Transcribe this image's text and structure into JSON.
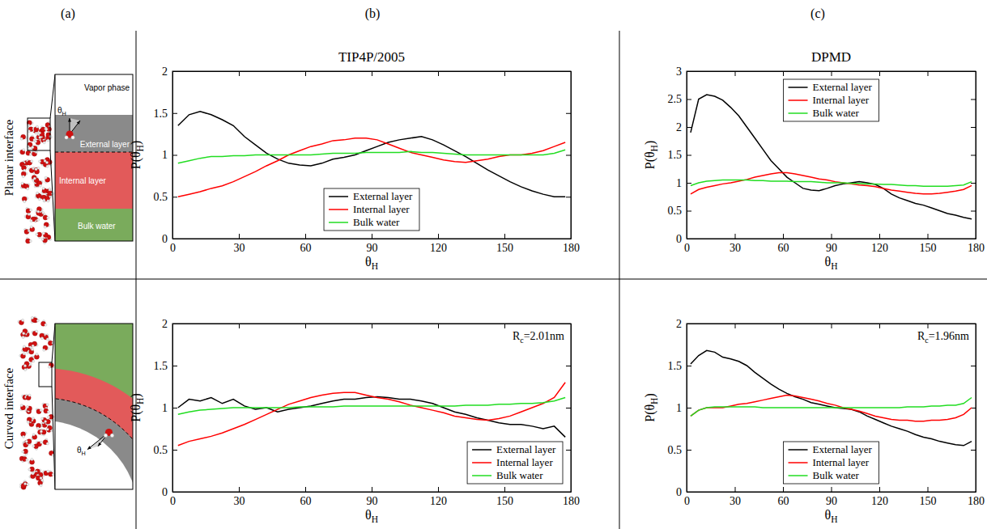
{
  "figure": {
    "column_labels": [
      "(a)",
      "(b)",
      "(c)"
    ],
    "row_labels": [
      "Planar interface",
      "Curved interface"
    ],
    "schematic": {
      "vapor": "Vapor phase",
      "external": "External layer",
      "internal": "Internal layer",
      "bulk": "Bulk water",
      "angle": "θH"
    }
  },
  "chart_data": [
    {
      "type": "line",
      "title": "TIP4P/2005",
      "xlabel": "θH",
      "ylabel": "P(θH)",
      "x": [
        2.5,
        7.5,
        12.5,
        17.5,
        22.5,
        27.5,
        32.5,
        37.5,
        42.5,
        47.5,
        52.5,
        57.5,
        62.5,
        67.5,
        72.5,
        77.5,
        82.5,
        87.5,
        92.5,
        97.5,
        102.5,
        107.5,
        112.5,
        117.5,
        122.5,
        127.5,
        132.5,
        137.5,
        142.5,
        147.5,
        152.5,
        157.5,
        162.5,
        167.5,
        172.5,
        177.5
      ],
      "xlim": [
        0,
        180
      ],
      "xticks": [
        0,
        30,
        60,
        90,
        120,
        150,
        180
      ],
      "ylim": [
        0,
        2
      ],
      "yticks": [
        0,
        0.5,
        1,
        1.5,
        2
      ],
      "legend": "lower center",
      "series": [
        {
          "name": "External layer",
          "color": "#000000",
          "values": [
            1.35,
            1.48,
            1.52,
            1.48,
            1.42,
            1.35,
            1.22,
            1.12,
            1.02,
            0.95,
            0.9,
            0.88,
            0.87,
            0.9,
            0.95,
            0.97,
            1.0,
            1.05,
            1.1,
            1.15,
            1.18,
            1.2,
            1.22,
            1.18,
            1.12,
            1.05,
            0.98,
            0.9,
            0.82,
            0.75,
            0.68,
            0.62,
            0.57,
            0.53,
            0.5,
            0.5
          ]
        },
        {
          "name": "Internal layer",
          "color": "#ff0000",
          "values": [
            0.5,
            0.53,
            0.56,
            0.6,
            0.63,
            0.68,
            0.74,
            0.8,
            0.87,
            0.93,
            1.0,
            1.05,
            1.1,
            1.13,
            1.17,
            1.18,
            1.2,
            1.2,
            1.18,
            1.13,
            1.08,
            1.03,
            1.0,
            0.97,
            0.94,
            0.92,
            0.91,
            0.93,
            0.95,
            0.98,
            1.0,
            1.0,
            1.02,
            1.05,
            1.1,
            1.15
          ]
        },
        {
          "name": "Bulk water",
          "color": "#22dd22",
          "values": [
            0.9,
            0.93,
            0.96,
            0.98,
            0.98,
            0.99,
            0.99,
            1.0,
            1.0,
            1.0,
            1.0,
            1.0,
            1.0,
            1.01,
            1.02,
            1.02,
            1.02,
            1.03,
            1.03,
            1.03,
            1.03,
            1.04,
            1.03,
            1.03,
            1.02,
            1.01,
            1.0,
            1.0,
            1.0,
            1.0,
            1.0,
            1.0,
            1.0,
            1.0,
            1.02,
            1.06
          ]
        }
      ]
    },
    {
      "type": "line",
      "title": "DPMD",
      "xlabel": "θH",
      "ylabel": "P(θH)",
      "x": [
        2.5,
        7.5,
        12.5,
        17.5,
        22.5,
        27.5,
        32.5,
        37.5,
        42.5,
        47.5,
        52.5,
        57.5,
        62.5,
        67.5,
        72.5,
        77.5,
        82.5,
        87.5,
        92.5,
        97.5,
        102.5,
        107.5,
        112.5,
        117.5,
        122.5,
        127.5,
        132.5,
        137.5,
        142.5,
        147.5,
        152.5,
        157.5,
        162.5,
        167.5,
        172.5,
        177.5
      ],
      "xlim": [
        0,
        180
      ],
      "xticks": [
        0,
        30,
        60,
        90,
        120,
        150,
        180
      ],
      "ylim": [
        0,
        3
      ],
      "yticks": [
        0,
        0.5,
        1,
        1.5,
        2,
        2.5,
        3
      ],
      "legend": "upper center",
      "series": [
        {
          "name": "External layer",
          "color": "#000000",
          "values": [
            1.9,
            2.5,
            2.58,
            2.55,
            2.48,
            2.35,
            2.2,
            2.0,
            1.8,
            1.6,
            1.4,
            1.25,
            1.1,
            1.0,
            0.9,
            0.87,
            0.86,
            0.9,
            0.95,
            0.98,
            1.0,
            1.02,
            1.0,
            0.97,
            0.9,
            0.8,
            0.73,
            0.68,
            0.63,
            0.6,
            0.55,
            0.5,
            0.45,
            0.42,
            0.38,
            0.35
          ]
        },
        {
          "name": "Internal layer",
          "color": "#ff0000",
          "values": [
            0.8,
            0.88,
            0.92,
            0.95,
            0.98,
            1.0,
            1.03,
            1.06,
            1.1,
            1.13,
            1.16,
            1.18,
            1.18,
            1.16,
            1.13,
            1.1,
            1.07,
            1.05,
            1.02,
            1.0,
            0.98,
            0.96,
            0.95,
            0.93,
            0.9,
            0.87,
            0.85,
            0.83,
            0.81,
            0.8,
            0.8,
            0.81,
            0.83,
            0.85,
            0.88,
            0.95
          ]
        },
        {
          "name": "Bulk water",
          "color": "#22dd22",
          "values": [
            0.95,
            1.0,
            1.03,
            1.04,
            1.05,
            1.05,
            1.05,
            1.05,
            1.04,
            1.04,
            1.03,
            1.03,
            1.03,
            1.02,
            1.02,
            1.02,
            1.01,
            1.0,
            1.0,
            1.0,
            0.99,
            0.99,
            0.98,
            0.98,
            0.97,
            0.97,
            0.96,
            0.95,
            0.95,
            0.94,
            0.94,
            0.94,
            0.94,
            0.95,
            0.96,
            1.02
          ]
        }
      ]
    },
    {
      "type": "line",
      "xlabel": "θH",
      "ylabel": "P(θH)",
      "annotation": "Rc=2.01nm",
      "x": [
        2.5,
        7.5,
        12.5,
        17.5,
        22.5,
        27.5,
        32.5,
        37.5,
        42.5,
        47.5,
        52.5,
        57.5,
        62.5,
        67.5,
        72.5,
        77.5,
        82.5,
        87.5,
        92.5,
        97.5,
        102.5,
        107.5,
        112.5,
        117.5,
        122.5,
        127.5,
        132.5,
        137.5,
        142.5,
        147.5,
        152.5,
        157.5,
        162.5,
        167.5,
        172.5,
        177.5
      ],
      "xlim": [
        0,
        180
      ],
      "xticks": [
        0,
        30,
        60,
        90,
        120,
        150,
        180
      ],
      "ylim": [
        0,
        2
      ],
      "yticks": [
        0,
        0.5,
        1,
        1.5,
        2
      ],
      "legend": "lower right",
      "series": [
        {
          "name": "External layer",
          "color": "#000000",
          "values": [
            1.0,
            1.1,
            1.08,
            1.12,
            1.05,
            1.1,
            1.02,
            0.98,
            1.0,
            0.95,
            0.98,
            1.0,
            1.02,
            1.05,
            1.08,
            1.1,
            1.1,
            1.12,
            1.13,
            1.12,
            1.1,
            1.1,
            1.08,
            1.05,
            1.0,
            0.95,
            0.92,
            0.88,
            0.85,
            0.82,
            0.8,
            0.8,
            0.78,
            0.75,
            0.78,
            0.65
          ]
        },
        {
          "name": "Internal layer",
          "color": "#ff0000",
          "values": [
            0.55,
            0.6,
            0.63,
            0.66,
            0.7,
            0.75,
            0.8,
            0.86,
            0.92,
            0.98,
            1.04,
            1.08,
            1.12,
            1.15,
            1.17,
            1.18,
            1.18,
            1.15,
            1.12,
            1.1,
            1.07,
            1.03,
            1.0,
            0.97,
            0.94,
            0.9,
            0.88,
            0.86,
            0.85,
            0.87,
            0.9,
            0.95,
            1.0,
            1.05,
            1.12,
            1.3
          ]
        },
        {
          "name": "Bulk water",
          "color": "#22dd22",
          "values": [
            0.92,
            0.95,
            0.97,
            0.98,
            0.99,
            1.0,
            1.0,
            1.0,
            1.0,
            1.0,
            1.0,
            1.01,
            1.01,
            1.01,
            1.01,
            1.02,
            1.02,
            1.02,
            1.02,
            1.02,
            1.02,
            1.02,
            1.02,
            1.02,
            1.02,
            1.02,
            1.03,
            1.03,
            1.03,
            1.04,
            1.04,
            1.05,
            1.05,
            1.06,
            1.08,
            1.12
          ]
        }
      ]
    },
    {
      "type": "line",
      "xlabel": "θH",
      "ylabel": "P(θH)",
      "annotation": "Rc=1.96nm",
      "x": [
        2.5,
        7.5,
        12.5,
        17.5,
        22.5,
        27.5,
        32.5,
        37.5,
        42.5,
        47.5,
        52.5,
        57.5,
        62.5,
        67.5,
        72.5,
        77.5,
        82.5,
        87.5,
        92.5,
        97.5,
        102.5,
        107.5,
        112.5,
        117.5,
        122.5,
        127.5,
        132.5,
        137.5,
        142.5,
        147.5,
        152.5,
        157.5,
        162.5,
        167.5,
        172.5,
        177.5
      ],
      "xlim": [
        0,
        180
      ],
      "xticks": [
        0,
        30,
        60,
        90,
        120,
        150,
        180
      ],
      "ylim": [
        0,
        2
      ],
      "yticks": [
        0,
        0.5,
        1,
        1.5,
        2
      ],
      "legend": "lower center",
      "series": [
        {
          "name": "External layer",
          "color": "#000000",
          "values": [
            1.52,
            1.62,
            1.68,
            1.66,
            1.6,
            1.58,
            1.55,
            1.5,
            1.42,
            1.35,
            1.28,
            1.22,
            1.17,
            1.13,
            1.1,
            1.06,
            1.04,
            1.02,
            1.0,
            0.99,
            0.98,
            0.95,
            0.9,
            0.86,
            0.82,
            0.78,
            0.75,
            0.72,
            0.68,
            0.65,
            0.63,
            0.6,
            0.58,
            0.56,
            0.55,
            0.6
          ]
        },
        {
          "name": "Internal layer",
          "color": "#ff0000",
          "values": [
            0.9,
            0.97,
            1.0,
            1.0,
            1.0,
            1.02,
            1.04,
            1.05,
            1.07,
            1.09,
            1.11,
            1.13,
            1.15,
            1.14,
            1.12,
            1.1,
            1.08,
            1.05,
            1.03,
            1.0,
            0.98,
            0.96,
            0.93,
            0.9,
            0.88,
            0.86,
            0.85,
            0.85,
            0.84,
            0.84,
            0.85,
            0.85,
            0.86,
            0.88,
            0.92,
            1.0
          ]
        },
        {
          "name": "Bulk water",
          "color": "#22dd22",
          "values": [
            0.9,
            0.97,
            1.0,
            1.01,
            1.01,
            1.01,
            1.01,
            1.01,
            1.01,
            1.0,
            1.0,
            1.0,
            1.0,
            1.0,
            1.0,
            1.0,
            1.0,
            1.0,
            1.0,
            1.0,
            1.0,
            1.0,
            1.0,
            1.0,
            1.0,
            1.0,
            1.0,
            1.01,
            1.01,
            1.01,
            1.02,
            1.02,
            1.03,
            1.03,
            1.05,
            1.12
          ]
        }
      ]
    }
  ]
}
